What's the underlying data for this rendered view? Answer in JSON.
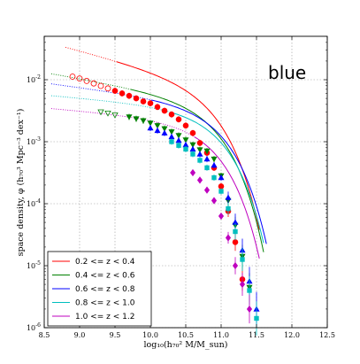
{
  "chart_data": {
    "type": "scatter",
    "panel_label": "blue",
    "ylabel": "space density, φ (h₇₀³ Mpc⁻³ dex⁻¹)",
    "xlabel": "log₁₀(h₇₀² M/M_sun)",
    "xlim": [
      8.5,
      12.5
    ],
    "ylim_log10": [
      -6,
      -1.3
    ],
    "yscale": "log",
    "grid": true,
    "legend_placement": "bottom-left",
    "x_ticks": [
      "8.5",
      "9.0",
      "9.5",
      "10.0",
      "10.5",
      "11.0",
      "11.5",
      "12.0",
      "12.5"
    ],
    "y_ticks": [
      {
        "base": "10",
        "exp": "-2",
        "log": -2
      },
      {
        "base": "10",
        "exp": "-3",
        "log": -3
      },
      {
        "base": "10",
        "exp": "-4",
        "log": -4
      },
      {
        "base": "10",
        "exp": "-5",
        "log": -5
      },
      {
        "base": "10",
        "exp": "-6",
        "log": -6
      }
    ],
    "series": [
      {
        "name": "0.2 <= z < 0.4",
        "color": "#ff0000",
        "marker": "circle",
        "schechter": {
          "logMstar": 10.85,
          "alpha": -1.3,
          "logPhiStar": -2.45
        },
        "line_x_range": [
          8.8,
          11.55
        ],
        "open_points": [
          [
            8.9,
            -1.95
          ],
          [
            9.0,
            -1.98
          ],
          [
            9.1,
            -2.02
          ],
          [
            9.2,
            -2.06
          ],
          [
            9.3,
            -2.1
          ],
          [
            9.4,
            -2.14
          ]
        ],
        "points": [
          [
            9.5,
            -2.18
          ],
          [
            9.6,
            -2.22
          ],
          [
            9.7,
            -2.26
          ],
          [
            9.8,
            -2.3
          ],
          [
            9.9,
            -2.35
          ],
          [
            10.0,
            -2.38
          ],
          [
            10.1,
            -2.44
          ],
          [
            10.2,
            -2.5
          ],
          [
            10.3,
            -2.56
          ],
          [
            10.4,
            -2.64
          ],
          [
            10.5,
            -2.74
          ],
          [
            10.6,
            -2.86
          ],
          [
            10.7,
            -3.02
          ],
          [
            10.8,
            -3.18
          ],
          [
            10.9,
            -3.42
          ],
          [
            11.0,
            -3.72
          ],
          [
            11.1,
            -4.12
          ],
          [
            11.2,
            -4.62
          ],
          [
            11.3,
            -5.22
          ]
        ]
      },
      {
        "name": "0.4 <= z < 0.6",
        "color": "#008000",
        "marker": "triangle-down",
        "schechter": {
          "logMstar": 10.88,
          "alpha": -1.2,
          "logPhiStar": -2.72
        },
        "line_x_range": [
          8.6,
          11.6
        ],
        "open_points": [
          [
            9.3,
            -2.52
          ],
          [
            9.4,
            -2.54
          ],
          [
            9.5,
            -2.57
          ]
        ],
        "points": [
          [
            9.7,
            -2.6
          ],
          [
            9.8,
            -2.63
          ],
          [
            9.9,
            -2.66
          ],
          [
            10.0,
            -2.7
          ],
          [
            10.1,
            -2.74
          ],
          [
            10.2,
            -2.79
          ],
          [
            10.3,
            -2.84
          ],
          [
            10.4,
            -2.9
          ],
          [
            10.5,
            -2.97
          ],
          [
            10.6,
            -3.05
          ],
          [
            10.7,
            -3.13
          ],
          [
            10.8,
            -3.15
          ],
          [
            10.9,
            -3.28
          ],
          [
            11.0,
            -3.55
          ],
          [
            11.1,
            -3.95
          ],
          [
            11.2,
            -4.35
          ],
          [
            11.3,
            -4.85
          ],
          [
            11.4,
            -5.35
          ]
        ]
      },
      {
        "name": "0.6 <= z < 0.8",
        "color": "#0000ff",
        "marker": "triangle-up",
        "schechter": {
          "logMstar": 10.95,
          "alpha": -1.15,
          "logPhiStar": -2.78
        },
        "line_x_range": [
          8.6,
          11.65
        ],
        "open_points": [],
        "points": [
          [
            10.0,
            -2.78
          ],
          [
            10.1,
            -2.82
          ],
          [
            10.2,
            -2.86
          ],
          [
            10.3,
            -2.92
          ],
          [
            10.4,
            -2.98
          ],
          [
            10.5,
            -3.05
          ],
          [
            10.6,
            -3.12
          ],
          [
            10.7,
            -3.2
          ],
          [
            10.8,
            -3.28
          ],
          [
            10.9,
            -3.38
          ],
          [
            11.0,
            -3.58
          ],
          [
            11.1,
            -3.9
          ],
          [
            11.2,
            -4.3
          ],
          [
            11.3,
            -4.75
          ],
          [
            11.4,
            -5.25
          ],
          [
            11.5,
            -5.7
          ]
        ]
      },
      {
        "name": "0.8 <= z < 1.0",
        "color": "#00bfbf",
        "marker": "square",
        "schechter": {
          "logMstar": 10.92,
          "alpha": -1.1,
          "logPhiStar": -2.85
        },
        "line_x_range": [
          8.6,
          11.6
        ],
        "open_points": [],
        "points": [
          [
            10.3,
            -3.0
          ],
          [
            10.4,
            -3.06
          ],
          [
            10.5,
            -3.12
          ],
          [
            10.6,
            -3.2
          ],
          [
            10.7,
            -3.3
          ],
          [
            10.8,
            -3.42
          ],
          [
            10.9,
            -3.58
          ],
          [
            11.0,
            -3.8
          ],
          [
            11.1,
            -4.08
          ],
          [
            11.2,
            -4.45
          ],
          [
            11.3,
            -4.9
          ],
          [
            11.4,
            -5.4
          ],
          [
            11.5,
            -5.85
          ]
        ]
      },
      {
        "name": "1.0 <= z < 1.2",
        "color": "#bf00bf",
        "marker": "diamond",
        "schechter": {
          "logMstar": 10.85,
          "alpha": -1.1,
          "logPhiStar": -3.05
        },
        "line_x_range": [
          8.6,
          11.55
        ],
        "open_points": [],
        "points": [
          [
            10.6,
            -3.5
          ],
          [
            10.7,
            -3.62
          ],
          [
            10.8,
            -3.78
          ],
          [
            10.9,
            -3.95
          ],
          [
            11.0,
            -4.2
          ],
          [
            11.1,
            -4.55
          ],
          [
            11.2,
            -5.0
          ],
          [
            11.3,
            -5.3
          ],
          [
            11.4,
            -5.7
          ]
        ]
      }
    ]
  }
}
